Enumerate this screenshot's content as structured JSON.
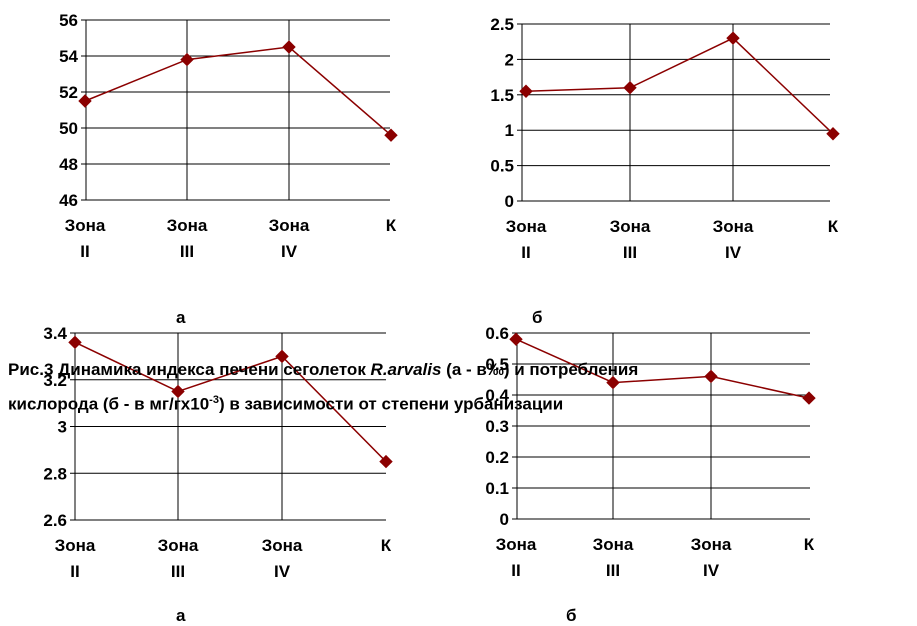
{
  "caption": {
    "line1_prefix": "Рис.3 Динамика индекса печени сеголеток ",
    "species": "R.arvalis",
    "line1_suffix": " (а - в‰) и потребления",
    "line2_prefix": "кислорода (б - в мг/гх10",
    "line2_sup": "-3",
    "line2_suffix": ") в зависимости от степени урбанизации"
  },
  "panels": [
    {
      "label": "а"
    },
    {
      "label": "б"
    },
    {
      "label": "а"
    },
    {
      "label": "б"
    }
  ],
  "colors": {
    "series": "#8B0000",
    "grid": "#000000"
  },
  "chart_data": [
    {
      "type": "line",
      "categories": [
        [
          "Зона",
          "II"
        ],
        [
          "Зона",
          "III"
        ],
        [
          "Зона",
          "IV"
        ],
        [
          "К"
        ]
      ],
      "values": [
        51.5,
        53.8,
        54.5,
        49.6
      ],
      "ylim": [
        46,
        56
      ],
      "yticks": [
        "46",
        "48",
        "50",
        "52",
        "54",
        "56"
      ],
      "grid": true
    },
    {
      "type": "line",
      "categories": [
        [
          "Зона",
          "II"
        ],
        [
          "Зона",
          "III"
        ],
        [
          "Зона",
          "IV"
        ],
        [
          "К"
        ]
      ],
      "values": [
        1.55,
        1.6,
        2.3,
        0.95
      ],
      "ylim": [
        0,
        2.5
      ],
      "yticks": [
        "0",
        "0.5",
        "1",
        "1.5",
        "2",
        "2.5"
      ],
      "grid": true
    },
    {
      "type": "line",
      "categories": [
        [
          "Зона",
          "II"
        ],
        [
          "Зона",
          "III"
        ],
        [
          "Зона",
          "IV"
        ],
        [
          "К"
        ]
      ],
      "values": [
        3.36,
        3.15,
        3.3,
        2.85
      ],
      "ylim": [
        2.6,
        3.4
      ],
      "yticks": [
        "2.6",
        "2.8",
        "3",
        "3.2",
        "3.4"
      ],
      "grid": true
    },
    {
      "type": "line",
      "categories": [
        [
          "Зона",
          "II"
        ],
        [
          "Зона",
          "III"
        ],
        [
          "Зона",
          "IV"
        ],
        [
          "К"
        ]
      ],
      "values": [
        0.58,
        0.44,
        0.46,
        0.39
      ],
      "ylim": [
        0,
        0.6
      ],
      "yticks": [
        "0",
        "0.1",
        "0.2",
        "0.3",
        "0.4",
        "0.5",
        "0.6"
      ],
      "grid": true
    }
  ]
}
